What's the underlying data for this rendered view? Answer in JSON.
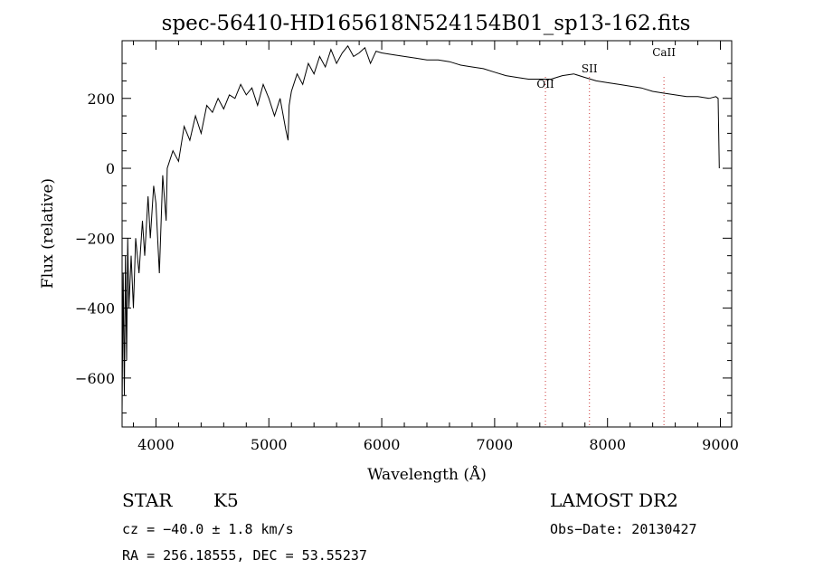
{
  "chart_data": {
    "type": "line",
    "title": "spec-56410-HD165618N524154B01_sp13-162.fits",
    "xlabel": "Wavelength (Å)",
    "ylabel": "Flux (relative)",
    "xlim": [
      3700,
      9100
    ],
    "ylim": [
      -740,
      365
    ],
    "x_ticks": [
      4000,
      5000,
      6000,
      7000,
      8000,
      9000
    ],
    "y_ticks": [
      -600,
      -400,
      -200,
      0,
      200
    ],
    "grid": false,
    "series": [
      {
        "x": [
          3700,
          3710,
          3720,
          3730,
          3740,
          3750,
          3760,
          3780,
          3800,
          3820,
          3850,
          3880,
          3900,
          3930,
          3950,
          3980,
          4000,
          4030,
          4060,
          4090,
          4100,
          4150,
          4200,
          4250,
          4300,
          4350,
          4400,
          4450,
          4500,
          4550,
          4600,
          4650,
          4700,
          4750,
          4800,
          4850,
          4900,
          4950,
          5000,
          5050,
          5100,
          5150,
          5170,
          5180,
          5200,
          5250,
          5300,
          5350,
          5400,
          5450,
          5500,
          5550,
          5600,
          5650,
          5700,
          5750,
          5800,
          5850,
          5900,
          5950,
          6000,
          6100,
          6200,
          6300,
          6400,
          6500,
          6600,
          6700,
          6800,
          6900,
          7000,
          7100,
          7200,
          7300,
          7400,
          7500,
          7600,
          7700,
          7800,
          7900,
          8000,
          8100,
          8200,
          8300,
          8400,
          8500,
          8600,
          8700,
          8800,
          8900,
          8960,
          8980,
          8990
        ],
        "y": [
          -700,
          -300,
          -650,
          -250,
          -550,
          -200,
          -400,
          -250,
          -400,
          -200,
          -300,
          -150,
          -250,
          -80,
          -200,
          -50,
          -100,
          -300,
          -20,
          -150,
          0,
          50,
          20,
          120,
          80,
          150,
          100,
          180,
          160,
          200,
          170,
          210,
          200,
          240,
          210,
          230,
          180,
          240,
          200,
          150,
          200,
          110,
          80,
          180,
          220,
          270,
          240,
          300,
          270,
          320,
          290,
          340,
          300,
          330,
          350,
          320,
          330,
          345,
          300,
          335,
          330,
          325,
          320,
          315,
          310,
          310,
          305,
          295,
          290,
          285,
          275,
          265,
          260,
          255,
          255,
          255,
          265,
          270,
          260,
          250,
          245,
          240,
          235,
          230,
          220,
          215,
          210,
          205,
          205,
          200,
          205,
          200,
          0
        ]
      }
    ],
    "line_markers": [
      {
        "label": "OII",
        "x": 7450
      },
      {
        "label": "SII",
        "x": 7840
      },
      {
        "label": "CaII",
        "x": 8500
      }
    ]
  },
  "footer": {
    "class_label": "STAR",
    "subclass_label": "K5",
    "survey": "LAMOST DR2",
    "cz": "cz = −40.0 ± 1.8 km/s",
    "obs_date": "Obs−Date: 20130427",
    "radec": "RA = 256.18555, DEC =  53.55237"
  },
  "colors": {
    "marker": "#cc3333",
    "line": "#000000"
  }
}
